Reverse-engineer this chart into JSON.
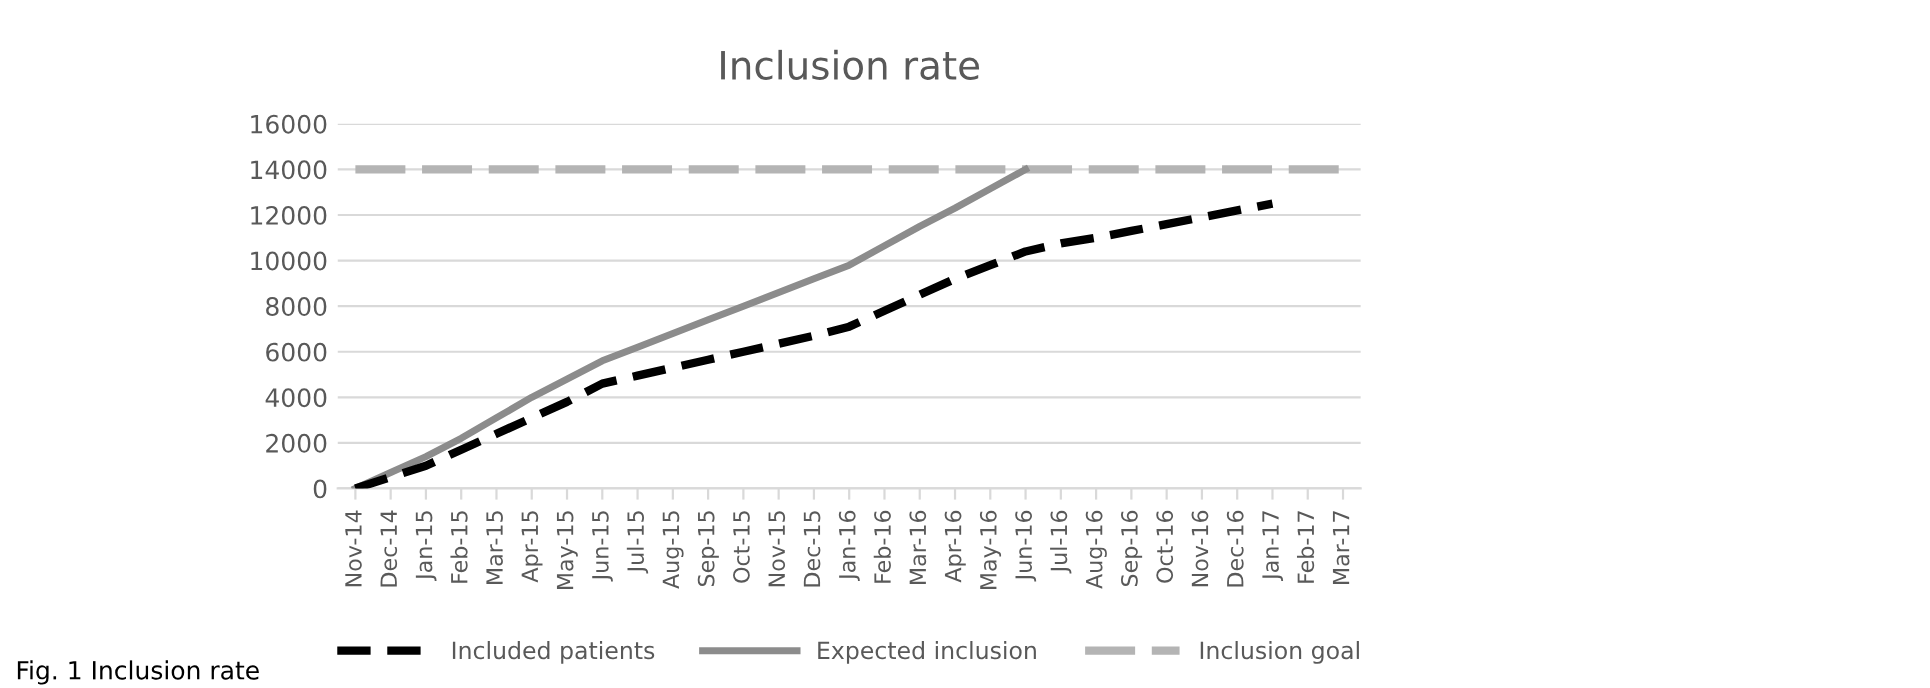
{
  "chart_data": {
    "type": "line",
    "title": "Inclusion rate",
    "categories": [
      "Nov-14",
      "Dec-14",
      "Jan-15",
      "Feb-15",
      "Mar-15",
      "Apr-15",
      "May-15",
      "Jun-15",
      "Jul-15",
      "Aug-15",
      "Sep-15",
      "Oct-15",
      "Nov-15",
      "Dec-15",
      "Jan-16",
      "Feb-16",
      "Mar-16",
      "Apr-16",
      "May-16",
      "Jun-16",
      "Jul-16",
      "Aug-16",
      "Sep-16",
      "Oct-16",
      "Nov-16",
      "Dec-16",
      "Jan-17",
      "Feb-17",
      "Mar-17"
    ],
    "series": [
      {
        "name": "Included patients",
        "color": "#000000",
        "line_style": "dashed",
        "values": [
          0,
          500,
          1000,
          1700,
          2400,
          3100,
          3800,
          4600,
          4950,
          5300,
          5650,
          6000,
          6350,
          6700,
          7100,
          7800,
          8500,
          9200,
          9800,
          10400,
          10750,
          11000,
          11300,
          11600,
          11900,
          12200,
          12500,
          null,
          null
        ]
      },
      {
        "name": "Expected inclusion",
        "color": "#8c8c8c",
        "line_style": "solid",
        "values": [
          0,
          700,
          1400,
          2200,
          3100,
          4000,
          4800,
          5600,
          6200,
          6800,
          7400,
          8000,
          8600,
          9200,
          9800,
          10650,
          11500,
          12300,
          13150,
          14000,
          null,
          null,
          null,
          null,
          null,
          null,
          null,
          null,
          null
        ]
      },
      {
        "name": "Inclusion goal",
        "color": "#b4b4b4",
        "line_style": "dashed",
        "values": [
          14000,
          14000,
          14000,
          14000,
          14000,
          14000,
          14000,
          14000,
          14000,
          14000,
          14000,
          14000,
          14000,
          14000,
          14000,
          14000,
          14000,
          14000,
          14000,
          14000,
          14000,
          14000,
          14000,
          14000,
          14000,
          14000,
          14000,
          14000,
          14000
        ]
      }
    ],
    "ylim": [
      0,
      16000
    ],
    "yticks": [
      0,
      2000,
      4000,
      6000,
      8000,
      10000,
      12000,
      14000,
      16000
    ],
    "grid": "y",
    "legend": "bottom",
    "marker": "none",
    "annotations": [
      "Fig. 1 Inclusion rate"
    ]
  }
}
